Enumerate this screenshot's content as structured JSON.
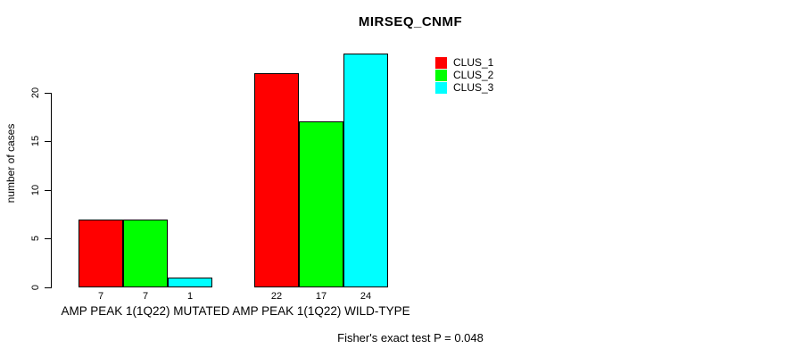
{
  "window": {
    "background_color": "#FFFFFF",
    "text_color": "#000000"
  },
  "chart_data": {
    "type": "bar",
    "title": "MIRSEQ_CNMF",
    "xlabel": "",
    "ylabel": "number of cases",
    "ylim": [
      0,
      24.6
    ],
    "yticks": [
      0,
      5,
      10,
      15,
      20
    ],
    "grid": false,
    "bar_borders": "#000000",
    "legend_position": "top-right",
    "categories": [
      "AMP PEAK 1(1Q22) MUTATED",
      "AMP PEAK 1(1Q22) WILD-TYPE"
    ],
    "series": [
      {
        "name": "CLUS_1",
        "color": "#FF0000",
        "values": [
          7,
          22
        ]
      },
      {
        "name": "CLUS_2",
        "color": "#00FF00",
        "values": [
          7,
          17
        ]
      },
      {
        "name": "CLUS_3",
        "color": "#00FFFF",
        "values": [
          1,
          24
        ]
      }
    ],
    "show_bar_value_labels": true,
    "annotation": "Fisher's exact test P = 0.048"
  }
}
